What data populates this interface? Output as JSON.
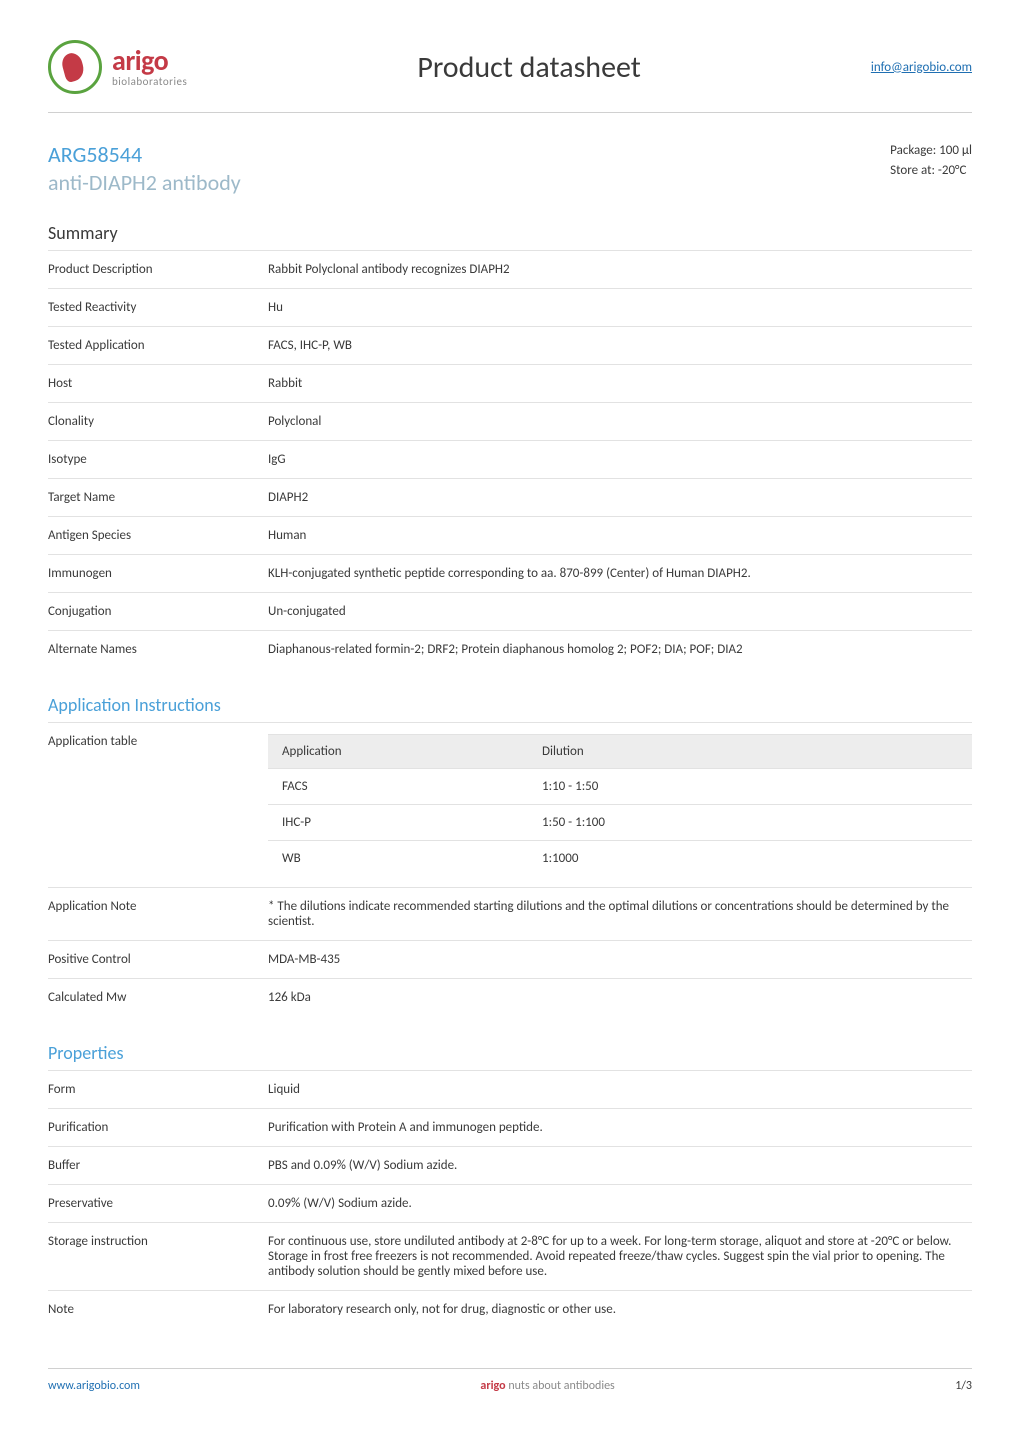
{
  "header": {
    "brand": "arigo",
    "brand_sub": "biolaboratories",
    "doc_title": "Product datasheet",
    "info_link": "info@arigobio.com"
  },
  "product": {
    "code": "ARG58544",
    "name": "anti-DIAPH2 antibody",
    "package_label": "Package:",
    "package_value": "100 μl",
    "store_label": "Store at:",
    "store_value": "-20°C"
  },
  "sections": {
    "summary_title": "Summary",
    "app_title": "Application Instructions",
    "props_title": "Properties"
  },
  "summary": {
    "rows": [
      {
        "k": "Product Description",
        "v": "Rabbit Polyclonal antibody recognizes DIAPH2"
      },
      {
        "k": "Tested Reactivity",
        "v": "Hu"
      },
      {
        "k": "Tested Application",
        "v": "FACS, IHC-P, WB"
      },
      {
        "k": "Host",
        "v": "Rabbit"
      },
      {
        "k": "Clonality",
        "v": "Polyclonal"
      },
      {
        "k": "Isotype",
        "v": "IgG"
      },
      {
        "k": "Target Name",
        "v": "DIAPH2"
      },
      {
        "k": "Antigen Species",
        "v": "Human"
      },
      {
        "k": "Immunogen",
        "v": "KLH-conjugated synthetic peptide corresponding to aa. 870-899 (Center) of Human DIAPH2."
      },
      {
        "k": "Conjugation",
        "v": "Un-conjugated"
      },
      {
        "k": "Alternate Names",
        "v": "Diaphanous-related formin-2; DRF2; Protein diaphanous homolog 2; POF2; DIA; POF; DIA2"
      }
    ]
  },
  "application": {
    "table_label": "Application table",
    "header_app": "Application",
    "header_dil": "Dilution",
    "rows": [
      {
        "app": "FACS",
        "dil": "1:10 - 1:50"
      },
      {
        "app": "IHC-P",
        "dil": "1:50 - 1:100"
      },
      {
        "app": "WB",
        "dil": "1:1000"
      }
    ],
    "note_label": "Application Note",
    "note_value": "* The dilutions indicate recommended starting dilutions and the optimal dilutions or concentrations should be determined by the scientist.",
    "positive_label": "Positive Control",
    "positive_value": "MDA-MB-435",
    "mw_label": "Calculated Mw",
    "mw_value": "126 kDa"
  },
  "properties": {
    "rows": [
      {
        "k": "Form",
        "v": "Liquid"
      },
      {
        "k": "Purification",
        "v": "Purification with Protein A and immunogen peptide."
      },
      {
        "k": "Buffer",
        "v": "PBS and 0.09% (W/V) Sodium azide."
      },
      {
        "k": "Preservative",
        "v": "0.09% (W/V) Sodium azide."
      },
      {
        "k": "Storage instruction",
        "v": "For continuous use, store undiluted antibody at 2-8°C for up to a week. For long-term storage, aliquot and store at -20°C or below. Storage in frost free freezers is not recommended. Avoid repeated freeze/thaw cycles. Suggest spin the vial prior to opening. The antibody solution should be gently mixed before use."
      },
      {
        "k": "Note",
        "v": "For laboratory research only, not for drug, diagnostic or other use."
      }
    ]
  },
  "footer": {
    "site": "www.arigobio.com",
    "tag_brand": "arigo",
    "tag_text": "nuts about antibodies",
    "page": "1/3"
  },
  "style": {
    "accent_blue": "#4aa0d8",
    "muted_blue": "#9db9c9",
    "link_blue": "#1f6fb2",
    "brand_red": "#c43a46",
    "brand_green": "#5aa33f",
    "border_gray": "#d0d0d0",
    "row_border": "#e2e2e2",
    "header_bg": "#ededed",
    "text_color": "#3a3a3a",
    "text_muted": "#8a8a8a",
    "base_fontsize": 13,
    "section_fontsize": 18,
    "title_fontsize": 30,
    "product_fontsize": 22
  }
}
